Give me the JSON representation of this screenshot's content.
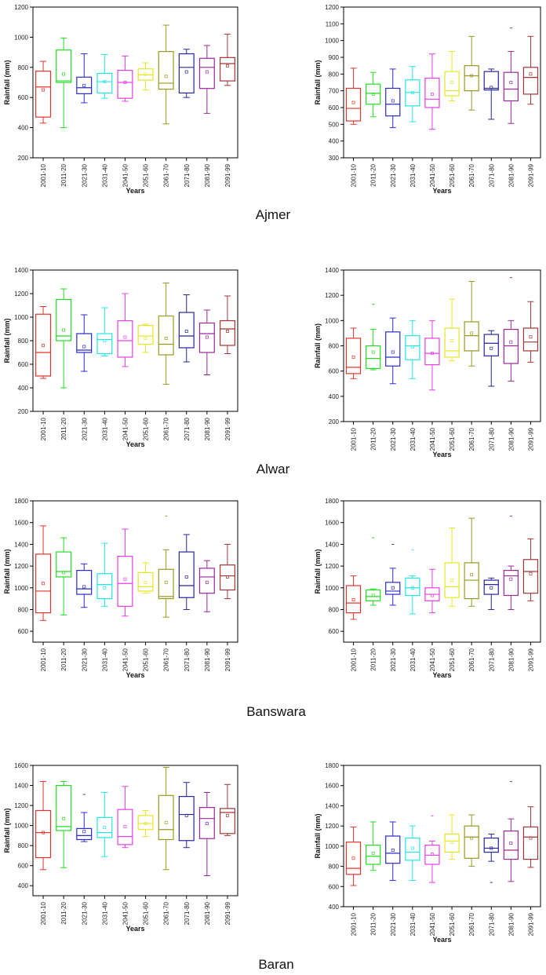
{
  "figure": {
    "stations": [
      "Ajmer",
      "Alwar",
      "Banswara",
      "Baran"
    ],
    "colors": [
      "#e8332c",
      "#22dd22",
      "#2b2bd0",
      "#20e6e6",
      "#e63ee6",
      "#e6e624",
      "#999922",
      "#26269a",
      "#9a2899",
      "#a23535"
    ]
  },
  "chart_data": [
    {
      "type": "box",
      "panel": "Ajmer-left",
      "title": "",
      "xlabel": "Years",
      "ylabel": "Rainfall (mm)",
      "ylim": [
        200,
        1200
      ],
      "yticks": [
        200,
        400,
        600,
        800,
        1000,
        1200
      ],
      "grid": false,
      "categories": [
        "2001-10",
        "2011-20",
        "2021-30",
        "2031-40",
        "2041-50",
        "2051-60",
        "2061-70",
        "2071-80",
        "2081-90",
        "2091-99"
      ],
      "stats": [
        {
          "min": 430,
          "q1": 470,
          "median": 670,
          "q3": 775,
          "max": 840,
          "mean": 650
        },
        {
          "min": 400,
          "q1": 700,
          "median": 710,
          "q3": 915,
          "max": 995,
          "mean": 755
        },
        {
          "min": 565,
          "q1": 625,
          "median": 665,
          "q3": 735,
          "max": 890,
          "mean": 680
        },
        {
          "min": 595,
          "q1": 630,
          "median": 705,
          "q3": 760,
          "max": 885,
          "mean": 705
        },
        {
          "min": 575,
          "q1": 595,
          "median": 700,
          "q3": 780,
          "max": 875,
          "mean": 700
        },
        {
          "min": 650,
          "q1": 715,
          "median": 750,
          "q3": 790,
          "max": 830,
          "mean": 755
        },
        {
          "min": 425,
          "q1": 655,
          "median": 695,
          "q3": 905,
          "max": 1080,
          "mean": 740
        },
        {
          "min": 600,
          "q1": 630,
          "median": 800,
          "q3": 890,
          "max": 920,
          "mean": 770
        },
        {
          "min": 495,
          "q1": 660,
          "median": 800,
          "q3": 860,
          "max": 945,
          "mean": 770
        },
        {
          "min": 680,
          "q1": 710,
          "median": 825,
          "q3": 865,
          "max": 1020,
          "mean": 810
        }
      ]
    },
    {
      "type": "box",
      "panel": "Ajmer-right",
      "title": "",
      "xlabel": "Years",
      "ylabel": "Rainfall (mm)",
      "ylim": [
        300,
        1200
      ],
      "yticks": [
        300,
        400,
        500,
        600,
        700,
        800,
        900,
        1000,
        1100,
        1200
      ],
      "grid": false,
      "categories": [
        "2001-10",
        "2011-20",
        "2021-30",
        "2031-40",
        "2041-50",
        "2051-60",
        "2061-70",
        "2071-80",
        "2081-90",
        "2091-99"
      ],
      "stats": [
        {
          "min": 500,
          "q1": 520,
          "median": 595,
          "q3": 715,
          "max": 835,
          "mean": 630
        },
        {
          "min": 545,
          "q1": 620,
          "median": 685,
          "q3": 740,
          "max": 810,
          "mean": 680
        },
        {
          "min": 480,
          "q1": 550,
          "median": 620,
          "q3": 715,
          "max": 830,
          "mean": 640
        },
        {
          "min": 515,
          "q1": 610,
          "median": 690,
          "q3": 765,
          "max": 845,
          "mean": 690
        },
        {
          "min": 470,
          "q1": 600,
          "median": 650,
          "q3": 775,
          "max": 920,
          "mean": 680
        },
        {
          "min": 640,
          "q1": 670,
          "median": 700,
          "q3": 815,
          "max": 935,
          "mean": 750
        },
        {
          "min": 585,
          "q1": 700,
          "median": 790,
          "q3": 850,
          "max": 1025,
          "mean": 790
        },
        {
          "min": 530,
          "q1": 705,
          "median": 715,
          "q3": 815,
          "max": 830,
          "mean": 720
        },
        {
          "min": 505,
          "q1": 640,
          "median": 710,
          "q3": 810,
          "max": 935,
          "mean": 750,
          "outliers": [
            1075
          ]
        },
        {
          "min": 620,
          "q1": 680,
          "median": 780,
          "q3": 840,
          "max": 1025,
          "mean": 800
        }
      ]
    },
    {
      "type": "box",
      "panel": "Alwar-left",
      "title": "",
      "xlabel": "Years",
      "ylabel": "Rainfall (mm)",
      "ylim": [
        200,
        1400
      ],
      "yticks": [
        200,
        400,
        600,
        800,
        1000,
        1200,
        1400
      ],
      "grid": false,
      "categories": [
        "2001-10",
        "2011-20",
        "2021-30",
        "2031-40",
        "2041-50",
        "2051-60",
        "2061-70",
        "2071-80",
        "2081-90",
        "2091-99"
      ],
      "stats": [
        {
          "min": 480,
          "q1": 500,
          "median": 700,
          "q3": 1025,
          "max": 1090,
          "mean": 760
        },
        {
          "min": 400,
          "q1": 800,
          "median": 840,
          "q3": 1150,
          "max": 1240,
          "mean": 890
        },
        {
          "min": 540,
          "q1": 700,
          "median": 720,
          "q3": 860,
          "max": 1020,
          "mean": 750
        },
        {
          "min": 670,
          "q1": 690,
          "median": 810,
          "q3": 860,
          "max": 1080,
          "mean": 800
        },
        {
          "min": 580,
          "q1": 660,
          "median": 800,
          "q3": 970,
          "max": 1200,
          "mean": 830
        },
        {
          "min": 700,
          "q1": 770,
          "median": 840,
          "q3": 930,
          "max": 940,
          "mean": 820
        },
        {
          "min": 430,
          "q1": 680,
          "median": 770,
          "q3": 1010,
          "max": 1290,
          "mean": 820
        },
        {
          "min": 620,
          "q1": 740,
          "median": 840,
          "q3": 1040,
          "max": 1190,
          "mean": 880
        },
        {
          "min": 510,
          "q1": 700,
          "median": 860,
          "q3": 950,
          "max": 1060,
          "mean": 830
        },
        {
          "min": 690,
          "q1": 760,
          "median": 900,
          "q3": 970,
          "max": 1180,
          "mean": 880
        }
      ]
    },
    {
      "type": "box",
      "panel": "Alwar-right",
      "title": "",
      "xlabel": "Years",
      "ylabel": "Rainfall (mm)",
      "ylim": [
        200,
        1400
      ],
      "yticks": [
        200,
        400,
        600,
        800,
        1000,
        1200,
        1400
      ],
      "grid": false,
      "categories": [
        "2001-10",
        "2011-20",
        "2021-30",
        "2031-40",
        "2041-50",
        "2051-60",
        "2061-70",
        "2071-80",
        "2081-90",
        "2091-99"
      ],
      "stats": [
        {
          "min": 540,
          "q1": 580,
          "median": 630,
          "q3": 860,
          "max": 940,
          "mean": 710
        },
        {
          "min": 610,
          "q1": 620,
          "median": 700,
          "q3": 800,
          "max": 930,
          "mean": 750,
          "outliers": [
            1130
          ]
        },
        {
          "min": 500,
          "q1": 640,
          "median": 710,
          "q3": 910,
          "max": 1020,
          "mean": 750
        },
        {
          "min": 540,
          "q1": 690,
          "median": 800,
          "q3": 880,
          "max": 1000,
          "mean": 790
        },
        {
          "min": 450,
          "q1": 650,
          "median": 740,
          "q3": 860,
          "max": 1000,
          "mean": 740
        },
        {
          "min": 680,
          "q1": 710,
          "median": 760,
          "q3": 940,
          "max": 1170,
          "mean": 840
        },
        {
          "min": 640,
          "q1": 760,
          "median": 880,
          "q3": 990,
          "max": 1310,
          "mean": 900
        },
        {
          "min": 480,
          "q1": 720,
          "median": 820,
          "q3": 890,
          "max": 920,
          "mean": 780
        },
        {
          "min": 520,
          "q1": 660,
          "median": 800,
          "q3": 930,
          "max": 1000,
          "mean": 830,
          "outliers": [
            1340
          ]
        },
        {
          "min": 670,
          "q1": 760,
          "median": 830,
          "q3": 940,
          "max": 1150,
          "mean": 870
        }
      ]
    },
    {
      "type": "box",
      "panel": "Banswara-left",
      "title": "",
      "xlabel": "Years",
      "ylabel": "Rainfall (mm)",
      "ylim": [
        500,
        1800
      ],
      "yticks": [
        600,
        800,
        1000,
        1200,
        1400,
        1600,
        1800
      ],
      "grid": false,
      "categories": [
        "2001-10",
        "2011-20",
        "2021-30",
        "2031-40",
        "2041-50",
        "2051-60",
        "2061-70",
        "2071-80",
        "2081-90",
        "2091-99"
      ],
      "stats": [
        {
          "min": 700,
          "q1": 770,
          "median": 970,
          "q3": 1310,
          "max": 1570,
          "mean": 1040
        },
        {
          "min": 750,
          "q1": 1100,
          "median": 1150,
          "q3": 1330,
          "max": 1460,
          "mean": 1140
        },
        {
          "min": 820,
          "q1": 940,
          "median": 990,
          "q3": 1160,
          "max": 1220,
          "mean": 1010
        },
        {
          "min": 830,
          "q1": 900,
          "median": 1030,
          "q3": 1130,
          "max": 1410,
          "mean": 1000
        },
        {
          "min": 740,
          "q1": 830,
          "median": 1040,
          "q3": 1290,
          "max": 1540,
          "mean": 1080
        },
        {
          "min": 950,
          "q1": 970,
          "median": 1010,
          "q3": 1140,
          "max": 1230,
          "mean": 1050
        },
        {
          "min": 730,
          "q1": 900,
          "median": 920,
          "q3": 1170,
          "max": 1350,
          "mean": 1050,
          "outliers": [
            1660
          ]
        },
        {
          "min": 800,
          "q1": 910,
          "median": 1020,
          "q3": 1330,
          "max": 1490,
          "mean": 1100
        },
        {
          "min": 780,
          "q1": 950,
          "median": 1100,
          "q3": 1180,
          "max": 1250,
          "mean": 1050
        },
        {
          "min": 900,
          "q1": 980,
          "median": 1110,
          "q3": 1210,
          "max": 1400,
          "mean": 1100
        }
      ]
    },
    {
      "type": "box",
      "panel": "Banswara-right",
      "title": "",
      "xlabel": "Years",
      "ylabel": "Rainfall (mm)",
      "ylim": [
        500,
        1800
      ],
      "yticks": [
        600,
        800,
        1000,
        1200,
        1400,
        1600,
        1800
      ],
      "grid": false,
      "categories": [
        "2001-10",
        "2011-20",
        "2021-30",
        "2031-40",
        "2041-50",
        "2051-60",
        "2061-70",
        "2071-80",
        "2081-90",
        "2091-99"
      ],
      "stats": [
        {
          "min": 710,
          "q1": 770,
          "median": 860,
          "q3": 1020,
          "max": 1110,
          "mean": 890
        },
        {
          "min": 840,
          "q1": 880,
          "median": 920,
          "q3": 980,
          "max": 990,
          "mean": 930,
          "outliers": [
            1460
          ]
        },
        {
          "min": 840,
          "q1": 940,
          "median": 970,
          "q3": 1050,
          "max": 1180,
          "mean": 1000,
          "outliers": [
            1400
          ]
        },
        {
          "min": 760,
          "q1": 930,
          "median": 1000,
          "q3": 1090,
          "max": 1110,
          "mean": 1000,
          "outliers": [
            1350
          ]
        },
        {
          "min": 770,
          "q1": 880,
          "median": 940,
          "q3": 1000,
          "max": 1170,
          "mean": 930
        },
        {
          "min": 830,
          "q1": 910,
          "median": 1010,
          "q3": 1230,
          "max": 1550,
          "mean": 1070
        },
        {
          "min": 830,
          "q1": 900,
          "median": 1070,
          "q3": 1230,
          "max": 1640,
          "mean": 1120
        },
        {
          "min": 800,
          "q1": 940,
          "median": 1030,
          "q3": 1070,
          "max": 1090,
          "mean": 1000
        },
        {
          "min": 800,
          "q1": 930,
          "median": 1110,
          "q3": 1160,
          "max": 1200,
          "mean": 1080,
          "outliers": [
            1660
          ]
        },
        {
          "min": 880,
          "q1": 950,
          "median": 1150,
          "q3": 1260,
          "max": 1450,
          "mean": 1130
        }
      ]
    },
    {
      "type": "box",
      "panel": "Baran-left",
      "title": "",
      "xlabel": "Years",
      "ylabel": "Rainfall (mm)",
      "ylim": [
        300,
        1600
      ],
      "yticks": [
        400,
        600,
        800,
        1000,
        1200,
        1400,
        1600
      ],
      "grid": false,
      "categories": [
        "2001-10",
        "2011-20",
        "2021-30",
        "2031-40",
        "2041-50",
        "2051-60",
        "2061-70",
        "2071-80",
        "2081-90",
        "2091-99"
      ],
      "stats": [
        {
          "min": 560,
          "q1": 680,
          "median": 930,
          "q3": 1150,
          "max": 1440,
          "mean": 930
        },
        {
          "min": 580,
          "q1": 950,
          "median": 990,
          "q3": 1400,
          "max": 1440,
          "mean": 1070
        },
        {
          "min": 840,
          "q1": 860,
          "median": 900,
          "q3": 970,
          "max": 1130,
          "mean": 940,
          "outliers": [
            1310
          ]
        },
        {
          "min": 690,
          "q1": 880,
          "median": 930,
          "q3": 1080,
          "max": 1330,
          "mean": 980
        },
        {
          "min": 780,
          "q1": 810,
          "median": 890,
          "q3": 1160,
          "max": 1390,
          "mean": 990
        },
        {
          "min": 890,
          "q1": 960,
          "median": 1020,
          "q3": 1100,
          "max": 1150,
          "mean": 1020
        },
        {
          "min": 560,
          "q1": 860,
          "median": 960,
          "q3": 1300,
          "max": 1580,
          "mean": 1030
        },
        {
          "min": 780,
          "q1": 850,
          "median": 1110,
          "q3": 1290,
          "max": 1430,
          "mean": 1100
        },
        {
          "min": 500,
          "q1": 870,
          "median": 1070,
          "q3": 1180,
          "max": 1330,
          "mean": 1020
        },
        {
          "min": 900,
          "q1": 920,
          "median": 1130,
          "q3": 1170,
          "max": 1410,
          "mean": 1100
        }
      ]
    },
    {
      "type": "box",
      "panel": "Baran-right",
      "title": "",
      "xlabel": "Years",
      "ylabel": "Rainfall (mm)",
      "ylim": [
        400,
        1800
      ],
      "yticks": [
        400,
        600,
        800,
        1000,
        1200,
        1400,
        1600,
        1800
      ],
      "grid": false,
      "categories": [
        "2001-10",
        "2011-20",
        "2021-30",
        "2031-40",
        "2041-50",
        "2051-60",
        "2061-70",
        "2071-80",
        "2081-90",
        "2091-99"
      ],
      "stats": [
        {
          "min": 610,
          "q1": 720,
          "median": 780,
          "q3": 1040,
          "max": 1190,
          "mean": 880
        },
        {
          "min": 760,
          "q1": 820,
          "median": 900,
          "q3": 1010,
          "max": 1240,
          "mean": 930
        },
        {
          "min": 660,
          "q1": 830,
          "median": 930,
          "q3": 1100,
          "max": 1240,
          "mean": 960
        },
        {
          "min": 660,
          "q1": 860,
          "median": 940,
          "q3": 1080,
          "max": 1200,
          "mean": 980
        },
        {
          "min": 640,
          "q1": 820,
          "median": 910,
          "q3": 1010,
          "max": 1050,
          "mean": 920,
          "outliers": [
            1300
          ]
        },
        {
          "min": 870,
          "q1": 940,
          "median": 1050,
          "q3": 1120,
          "max": 1310,
          "mean": 1040
        },
        {
          "min": 800,
          "q1": 880,
          "median": 1090,
          "q3": 1200,
          "max": 1310,
          "mean": 1080
        },
        {
          "min": 850,
          "q1": 940,
          "median": 980,
          "q3": 1080,
          "max": 1120,
          "mean": 980,
          "outliers": [
            640
          ]
        },
        {
          "min": 650,
          "q1": 870,
          "median": 960,
          "q3": 1150,
          "max": 1270,
          "mean": 1030,
          "outliers": [
            1640
          ]
        },
        {
          "min": 790,
          "q1": 870,
          "median": 1090,
          "q3": 1190,
          "max": 1390,
          "mean": 1080
        }
      ]
    }
  ]
}
